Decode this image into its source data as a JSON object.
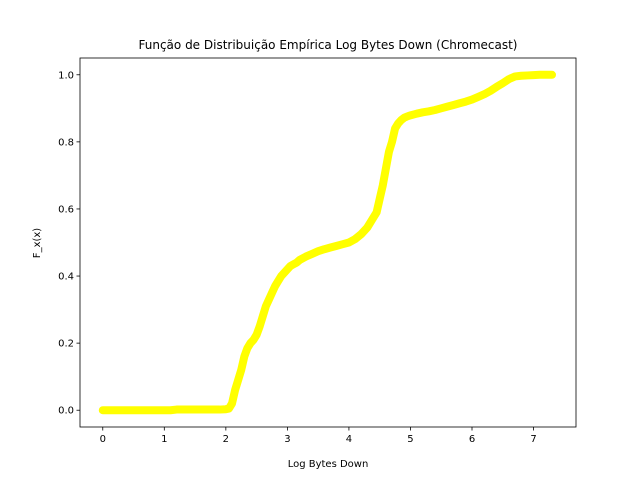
{
  "chart_data": {
    "type": "scatter",
    "title": "Função de Distribuição Empírica Log Bytes Down (Chromecast)",
    "xlabel": "Log Bytes Down",
    "ylabel": "F_x(x)",
    "xlim": [
      -0.37,
      7.69
    ],
    "ylim": [
      -0.05,
      1.05
    ],
    "xticks": [
      0,
      1,
      2,
      3,
      4,
      5,
      6,
      7
    ],
    "yticks": [
      0.0,
      0.2,
      0.4,
      0.6,
      0.8,
      1.0
    ],
    "xtick_labels": [
      "0",
      "1",
      "2",
      "3",
      "4",
      "5",
      "6",
      "7"
    ],
    "ytick_labels": [
      "0.0",
      "0.2",
      "0.4",
      "0.6",
      "0.8",
      "1.0"
    ],
    "grid": false,
    "color": "#ffff00",
    "series": [
      {
        "x": [
          0.0,
          0.15,
          0.3,
          0.45,
          0.55,
          0.62,
          0.7,
          0.8,
          0.9,
          1.0,
          1.1,
          1.2,
          1.3,
          1.4,
          1.5,
          1.6,
          1.7,
          1.8,
          1.9,
          2.0,
          2.05,
          2.1,
          2.15,
          2.2,
          2.25,
          2.3,
          2.35,
          2.4,
          2.45,
          2.5,
          2.55,
          2.6,
          2.65,
          2.7,
          2.75,
          2.8,
          2.85,
          2.9,
          2.95,
          3.0,
          3.05,
          3.1,
          3.15,
          3.2,
          3.3,
          3.4,
          3.5,
          3.6,
          3.7,
          3.8,
          3.9,
          4.0,
          4.1,
          4.2,
          4.3,
          4.4,
          4.45,
          4.5,
          4.55,
          4.6,
          4.65,
          4.7,
          4.75,
          4.8,
          4.85,
          4.9,
          4.95,
          5.0,
          5.1,
          5.2,
          5.3,
          5.4,
          5.5,
          5.6,
          5.7,
          5.8,
          5.9,
          6.0,
          6.1,
          6.2,
          6.3,
          6.4,
          6.5,
          6.6,
          6.7,
          6.8,
          6.9,
          7.0,
          7.1,
          7.2,
          7.3
        ],
        "y": [
          0.0,
          0.0,
          0.0,
          0.0,
          0.0,
          0.0,
          0.0,
          0.0,
          0.0,
          0.0,
          0.0,
          0.002,
          0.002,
          0.002,
          0.002,
          0.002,
          0.002,
          0.002,
          0.002,
          0.003,
          0.005,
          0.02,
          0.06,
          0.09,
          0.12,
          0.16,
          0.185,
          0.2,
          0.21,
          0.225,
          0.25,
          0.28,
          0.31,
          0.33,
          0.35,
          0.37,
          0.385,
          0.4,
          0.41,
          0.42,
          0.43,
          0.435,
          0.44,
          0.448,
          0.458,
          0.466,
          0.474,
          0.48,
          0.485,
          0.49,
          0.495,
          0.5,
          0.51,
          0.525,
          0.545,
          0.575,
          0.59,
          0.63,
          0.67,
          0.72,
          0.77,
          0.8,
          0.84,
          0.855,
          0.865,
          0.872,
          0.876,
          0.879,
          0.884,
          0.888,
          0.891,
          0.895,
          0.9,
          0.905,
          0.91,
          0.915,
          0.92,
          0.926,
          0.934,
          0.942,
          0.952,
          0.964,
          0.975,
          0.987,
          0.995,
          0.997,
          0.998,
          0.999,
          1.0,
          1.0,
          1.0
        ]
      }
    ]
  }
}
